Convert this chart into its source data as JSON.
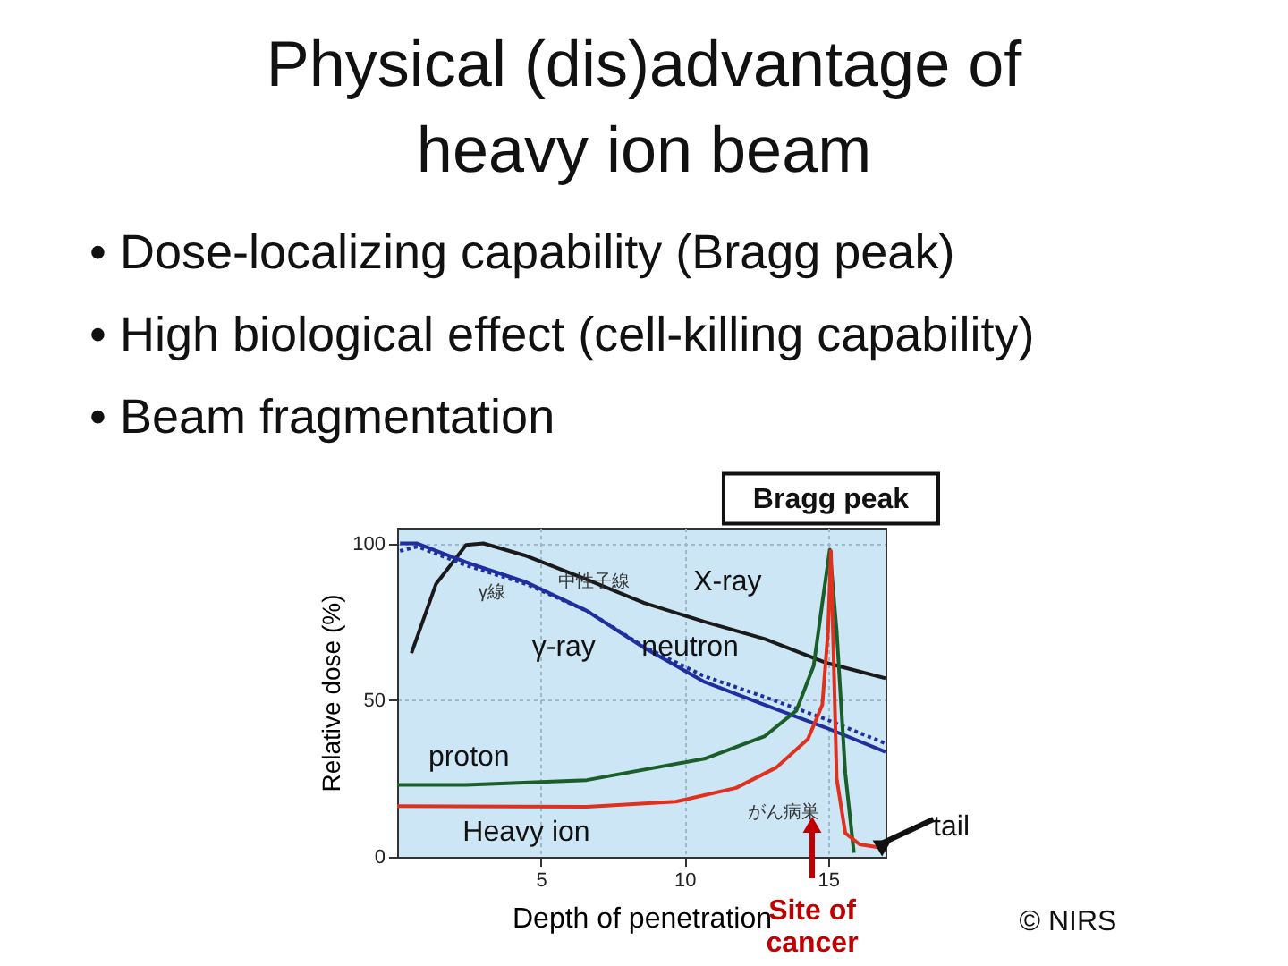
{
  "chart_data": {
    "type": "line",
    "title": "Physical (dis)advantage of heavy ion beam",
    "xlabel": "Depth of penetration",
    "ylabel": "Relative dose (%)",
    "xlim": [
      0,
      17
    ],
    "ylim": [
      0,
      105
    ],
    "xticks": [
      5,
      10,
      15
    ],
    "yticks": [
      0,
      50,
      100
    ],
    "grid": true,
    "legend": false,
    "series": [
      {
        "name": "X-ray",
        "color": "#1a1a1a",
        "x": [
          0.5,
          1.35,
          2.4,
          3,
          4.5,
          6.6,
          8.6,
          10.7,
          12.8,
          14.9,
          17
        ],
        "values": [
          65,
          87,
          99.5,
          100,
          96,
          88.5,
          81,
          75,
          69.5,
          62,
          57
        ]
      },
      {
        "name": "γ-ray",
        "color": "#1f2fa0",
        "x": [
          0.1,
          0.7,
          2.4,
          4.5,
          6.6,
          8.6,
          10.7,
          12.8,
          14.9,
          17
        ],
        "values": [
          100,
          100,
          94,
          87.6,
          78.5,
          66.7,
          55.8,
          48.5,
          41.3,
          33.5
        ]
      },
      {
        "name": "neutron",
        "color": "#1f2fa0",
        "line_style": "dotted",
        "x": [
          0.1,
          0.7,
          2.4,
          4.5,
          6.6,
          8.6,
          10.7,
          12.8,
          14.9,
          17
        ],
        "values": [
          97.6,
          99,
          93,
          87,
          78.5,
          67,
          57.6,
          51,
          44,
          36.2
        ]
      },
      {
        "name": "proton",
        "color": "#1a5e2a",
        "x": [
          0,
          2.4,
          6.6,
          10.7,
          12.8,
          13.9,
          14.5,
          14.8,
          15.06,
          15.3,
          15.6,
          15.9
        ],
        "values": [
          23,
          23,
          24.5,
          31.3,
          38.5,
          46.7,
          61,
          81,
          98,
          72,
          26.7,
          1.3
        ]
      },
      {
        "name": "Heavy ion",
        "color": "#e0301e",
        "x": [
          0,
          6.6,
          9.7,
          11.8,
          13.2,
          14.3,
          14.8,
          15,
          15.1,
          15.3,
          15.6,
          16.1,
          17
        ],
        "values": [
          16.2,
          16,
          17.6,
          22,
          28.5,
          37.6,
          48.5,
          72,
          97.6,
          25,
          7.6,
          4,
          2.7
        ]
      }
    ],
    "annotations": [
      "• Dose-localizing capability (Bragg peak)",
      "• High biological effect (cell-killing capability)",
      "• Beam fragmentation",
      {
        "text": "Bragg peak",
        "x": 15.1,
        "y": 100
      },
      {
        "text": "tail",
        "x": 16.3,
        "y": 4
      },
      "γ線",
      "中性子線",
      "がん病巣",
      "Site of cancer",
      "© NIRS"
    ]
  }
}
